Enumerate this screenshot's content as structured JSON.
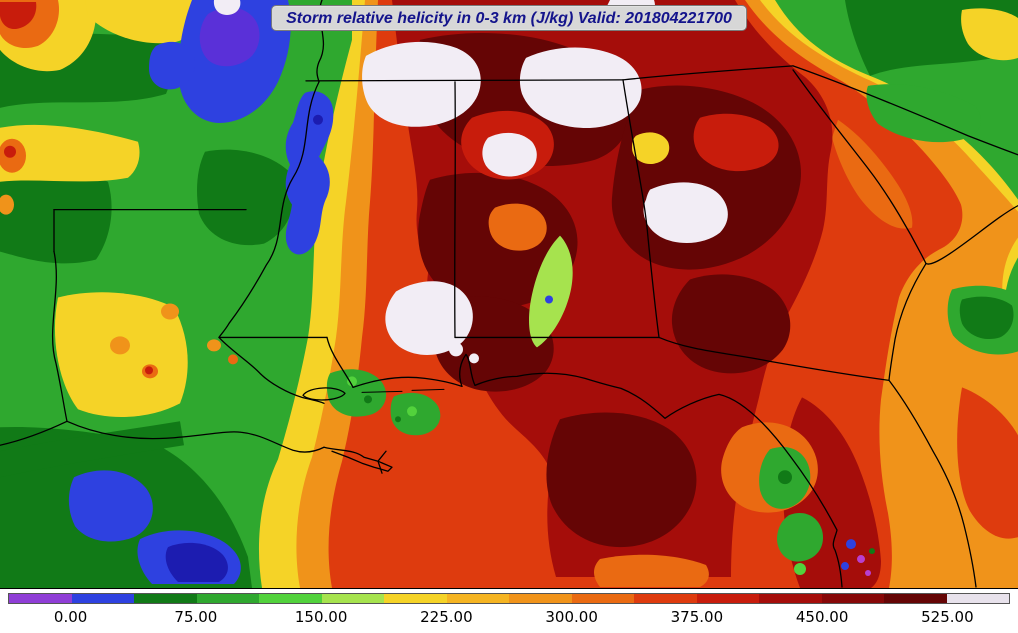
{
  "chart_data": {
    "type": "heatmap",
    "title": "Storm relative helicity in 0-3 km (J/kg) Valid: 201804221700",
    "variable": "Storm relative helicity in 0-3 km",
    "units": "J/kg",
    "valid_time": "201804221700",
    "region": "Southeastern United States: Gulf Coast from Texas/Louisiana east across Mississippi, Alabama, Georgia and Florida up to Tennessee and the Carolinas, including the adjacent Gulf of Mexico and Atlantic",
    "grid": "off",
    "legend_position": "bottom horizontal colorbar",
    "colorbar": {
      "orientation": "horizontal",
      "tick_labels": [
        "0.00",
        "75.00",
        "150.00",
        "225.00",
        "300.00",
        "375.00",
        "450.00",
        "525.00"
      ],
      "tick_values": [
        0,
        75,
        150,
        225,
        300,
        375,
        450,
        525
      ],
      "levels": [
        -37.5,
        0,
        37.5,
        75,
        112.5,
        150,
        187.5,
        225,
        262.5,
        300,
        337.5,
        375,
        412.5,
        450,
        487.5,
        525,
        562.5
      ],
      "segment_colors": [
        "#8f3ed6",
        "#2e41e0",
        "#117a17",
        "#2fa82f",
        "#52d23c",
        "#a6e34e",
        "#f5d327",
        "#f5b422",
        "#f0931a",
        "#ea6a12",
        "#de3b0e",
        "#c81c0c",
        "#a50d0a",
        "#870808",
        "#650505",
        "#e8e2ec"
      ]
    },
    "features": [
      {
        "region": "northern Alabama into southern Tennessee",
        "helicity": "above 525 J/kg (white patches inside dark red core)"
      },
      {
        "region": "central Alabama and western/central Georgia",
        "helicity": "420-525 J/kg (maroon/dark red mass with white pockets)"
      },
      {
        "region": "Gulf of Mexico south of the Mississippi/Alabama coast",
        "helicity": "350-520 J/kg red plume extending south"
      },
      {
        "region": "Florida peninsula and nearby Atlantic",
        "helicity": "225-450 J/kg, dark red band along the east coast, green pockets on the west coast"
      },
      {
        "region": "northeastern Arkansas / Missouri bootheel",
        "helicity": "-30 to 40 J/kg (blue patch with purple core)"
      },
      {
        "region": "offshore Texas-Louisiana Gulf waters",
        "helicity": "0-75 J/kg (blue patches over dark green)"
      },
      {
        "region": "Texas, western Louisiana, interior Carolinas",
        "helicity": "75-220 J/kg (green with yellow and orange patches)"
      }
    ]
  }
}
